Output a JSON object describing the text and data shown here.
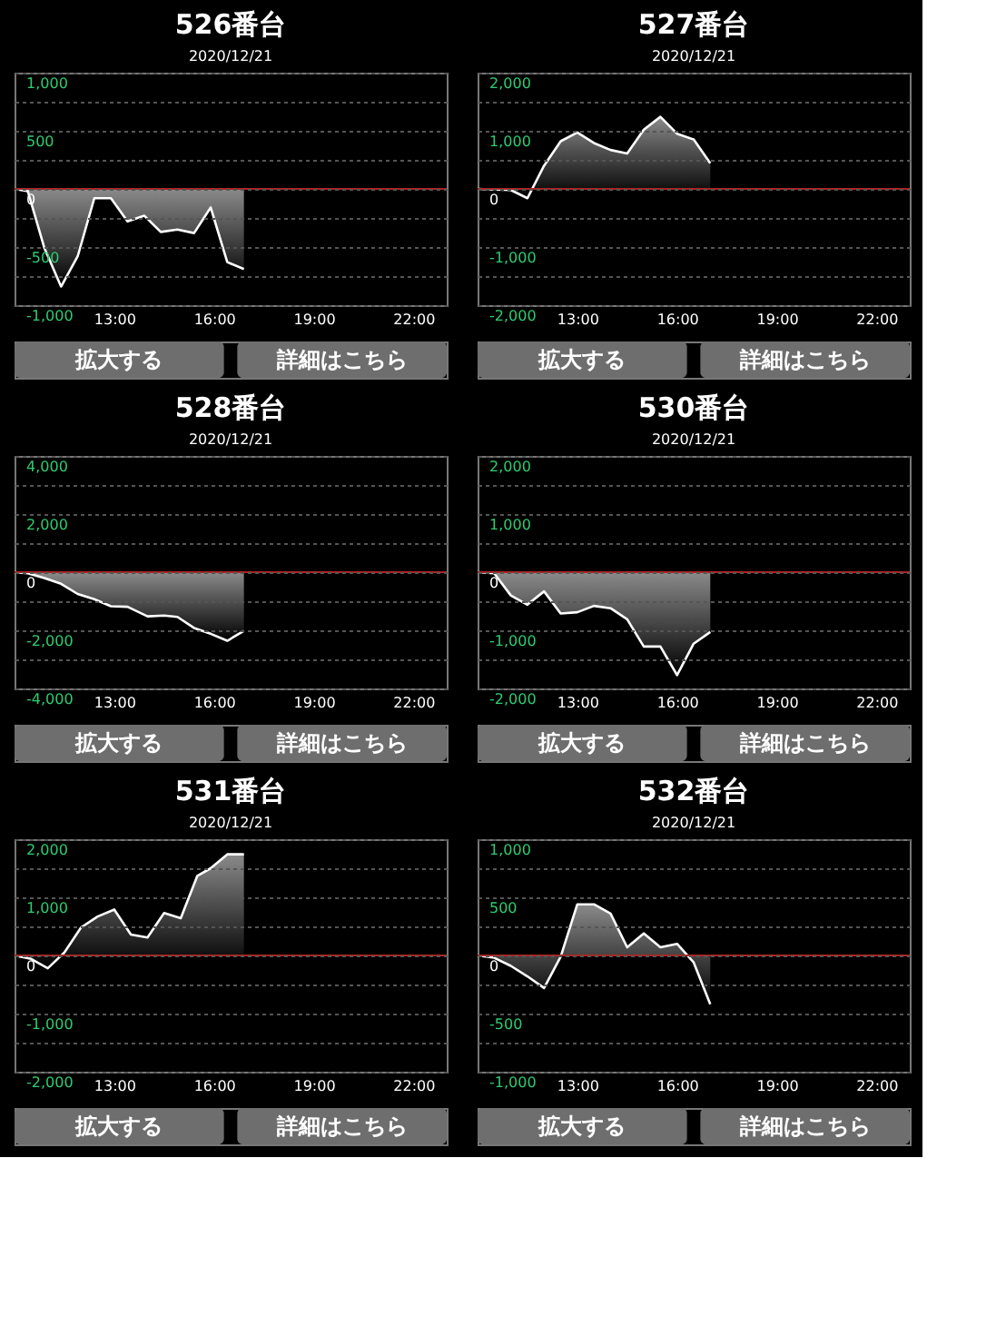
{
  "chart_data": [
    {
      "type": "area",
      "title": "526番台",
      "subtitle": "2020/12/21",
      "x": [
        10.0,
        10.4,
        10.9,
        11.4,
        11.9,
        12.4,
        12.9,
        13.4,
        13.9,
        14.4,
        14.9,
        15.4,
        15.9,
        16.4,
        16.9
      ],
      "series": [
        {
          "color": "#ffffff",
          "values": [
            0,
            -20,
            -510,
            -840,
            -580,
            -80,
            -80,
            -280,
            -230,
            -370,
            -350,
            -380,
            -160,
            -630,
            -690
          ]
        }
      ],
      "xlim": [
        10,
        23
      ],
      "xticks": [
        {
          "value": 13,
          "label": "13:00"
        },
        {
          "value": 16,
          "label": "16:00"
        },
        {
          "value": 19,
          "label": "19:00"
        },
        {
          "value": 22,
          "label": "22:00"
        }
      ],
      "ylim": [
        -1000,
        1000
      ],
      "yticks": [
        {
          "value": -1000,
          "label": "-1,000"
        },
        {
          "value": -750,
          "label": null
        },
        -500,
        {
          "value": -250,
          "label": null
        },
        0,
        {
          "value": 250,
          "label": null
        },
        500,
        {
          "value": 750,
          "label": null
        },
        {
          "value": 1000,
          "label": "1,000"
        }
      ],
      "grid": "y",
      "ref_lines": [
        {
          "axis": "y",
          "value": 0,
          "color": "#b22222"
        }
      ],
      "annotations": [
        "拡大する",
        "詳細はこちら"
      ]
    },
    {
      "type": "area",
      "title": "527番台",
      "subtitle": "2020/12/21",
      "x": [
        10.0,
        11.0,
        11.5,
        12.0,
        12.5,
        13.0,
        13.5,
        14.0,
        14.5,
        15.0,
        15.5,
        16.0,
        16.5,
        17.0
      ],
      "series": [
        {
          "color": "#ffffff",
          "values": [
            0,
            -20,
            -160,
            400,
            820,
            970,
            790,
            670,
            610,
            1020,
            1240,
            950,
            850,
            440
          ]
        }
      ],
      "xlim": [
        10,
        23
      ],
      "xticks": [
        {
          "value": 13,
          "label": "13:00"
        },
        {
          "value": 16,
          "label": "16:00"
        },
        {
          "value": 19,
          "label": "19:00"
        },
        {
          "value": 22,
          "label": "22:00"
        }
      ],
      "ylim": [
        -2000,
        2000
      ],
      "yticks": [
        {
          "value": -2000,
          "label": "-2,000"
        },
        {
          "value": -1500,
          "label": null
        },
        {
          "value": -1000,
          "label": "-1,000"
        },
        {
          "value": -500,
          "label": null
        },
        0,
        {
          "value": 500,
          "label": null
        },
        {
          "value": 1000,
          "label": "1,000"
        },
        {
          "value": 1500,
          "label": null
        },
        {
          "value": 2000,
          "label": "2,000"
        }
      ],
      "grid": "y",
      "ref_lines": [
        {
          "axis": "y",
          "value": 0,
          "color": "#b22222"
        }
      ],
      "annotations": [
        "拡大する",
        "詳細はこちら"
      ]
    },
    {
      "type": "area",
      "title": "528番台",
      "subtitle": "2020/12/21",
      "x": [
        10.0,
        10.4,
        10.9,
        11.4,
        11.9,
        12.4,
        12.9,
        13.4,
        14.0,
        14.5,
        14.9,
        15.4,
        15.9,
        16.4,
        16.9
      ],
      "series": [
        {
          "color": "#ffffff",
          "values": [
            0,
            -40,
            -200,
            -400,
            -750,
            -930,
            -1170,
            -1190,
            -1520,
            -1490,
            -1540,
            -1920,
            -2120,
            -2360,
            -2020
          ]
        }
      ],
      "xlim": [
        10,
        23
      ],
      "xticks": [
        {
          "value": 13,
          "label": "13:00"
        },
        {
          "value": 16,
          "label": "16:00"
        },
        {
          "value": 19,
          "label": "19:00"
        },
        {
          "value": 22,
          "label": "22:00"
        }
      ],
      "ylim": [
        -4000,
        4000
      ],
      "yticks": [
        {
          "value": -4000,
          "label": "-4,000"
        },
        {
          "value": -3000,
          "label": null
        },
        {
          "value": -2000,
          "label": "-2,000"
        },
        {
          "value": -1000,
          "label": null
        },
        0,
        {
          "value": 1000,
          "label": null
        },
        {
          "value": 2000,
          "label": "2,000"
        },
        {
          "value": 3000,
          "label": null
        },
        {
          "value": 4000,
          "label": "4,000"
        }
      ],
      "grid": "y",
      "ref_lines": [
        {
          "axis": "y",
          "value": 0,
          "color": "#b22222"
        }
      ],
      "annotations": [
        "拡大する",
        "詳細はこちら"
      ]
    },
    {
      "type": "area",
      "title": "530番台",
      "subtitle": "2020/12/21",
      "x": [
        10.0,
        10.5,
        11.0,
        11.5,
        12.0,
        12.5,
        13.0,
        13.5,
        14.0,
        14.5,
        15.0,
        15.5,
        16.0,
        16.5,
        17.0
      ],
      "series": [
        {
          "color": "#ffffff",
          "values": [
            0,
            -20,
            -400,
            -560,
            -330,
            -710,
            -690,
            -580,
            -620,
            -810,
            -1280,
            -1280,
            -1770,
            -1230,
            -1030
          ]
        }
      ],
      "xlim": [
        10,
        23
      ],
      "xticks": [
        {
          "value": 13,
          "label": "13:00"
        },
        {
          "value": 16,
          "label": "16:00"
        },
        {
          "value": 19,
          "label": "19:00"
        },
        {
          "value": 22,
          "label": "22:00"
        }
      ],
      "ylim": [
        -2000,
        2000
      ],
      "yticks": [
        {
          "value": -2000,
          "label": "-2,000"
        },
        {
          "value": -1500,
          "label": null
        },
        {
          "value": -1000,
          "label": "-1,000"
        },
        {
          "value": -500,
          "label": null
        },
        0,
        {
          "value": 500,
          "label": null
        },
        {
          "value": 1000,
          "label": "1,000"
        },
        {
          "value": 1500,
          "label": null
        },
        {
          "value": 2000,
          "label": "2,000"
        }
      ],
      "grid": "y",
      "ref_lines": [
        {
          "axis": "y",
          "value": 0,
          "color": "#b22222"
        }
      ],
      "annotations": [
        "拡大する",
        "詳細はこちら"
      ]
    },
    {
      "type": "area",
      "title": "531番台",
      "subtitle": "2020/12/21",
      "x": [
        10.0,
        10.5,
        11.0,
        11.5,
        12.0,
        12.5,
        13.0,
        13.5,
        14.0,
        14.5,
        15.0,
        15.5,
        15.9,
        16.4,
        16.9
      ],
      "series": [
        {
          "color": "#ffffff",
          "values": [
            0,
            -60,
            -220,
            50,
            480,
            670,
            790,
            360,
            310,
            730,
            640,
            1370,
            1500,
            1740,
            1740
          ]
        }
      ],
      "xlim": [
        10,
        23
      ],
      "xticks": [
        {
          "value": 13,
          "label": "13:00"
        },
        {
          "value": 16,
          "label": "16:00"
        },
        {
          "value": 19,
          "label": "19:00"
        },
        {
          "value": 22,
          "label": "22:00"
        }
      ],
      "ylim": [
        -2000,
        2000
      ],
      "yticks": [
        {
          "value": -2000,
          "label": "-2,000"
        },
        {
          "value": -1500,
          "label": null
        },
        {
          "value": -1000,
          "label": "-1,000"
        },
        {
          "value": -500,
          "label": null
        },
        0,
        {
          "value": 500,
          "label": null
        },
        {
          "value": 1000,
          "label": "1,000"
        },
        {
          "value": 1500,
          "label": null
        },
        {
          "value": 2000,
          "label": "2,000"
        }
      ],
      "grid": "y",
      "ref_lines": [
        {
          "axis": "y",
          "value": 0,
          "color": "#b22222"
        }
      ],
      "annotations": [
        "拡大する",
        "詳細はこちら"
      ]
    },
    {
      "type": "area",
      "title": "532番台",
      "subtitle": "2020/12/21",
      "x": [
        10.0,
        10.5,
        11.0,
        11.5,
        12.0,
        12.5,
        13.0,
        13.5,
        14.0,
        14.5,
        15.0,
        15.5,
        16.0,
        16.5,
        17.0
      ],
      "series": [
        {
          "color": "#ffffff",
          "values": [
            0,
            -20,
            -90,
            -180,
            -280,
            -10,
            440,
            440,
            360,
            70,
            190,
            70,
            100,
            -60,
            -420
          ]
        }
      ],
      "xlim": [
        10,
        23
      ],
      "xticks": [
        {
          "value": 13,
          "label": "13:00"
        },
        {
          "value": 16,
          "label": "16:00"
        },
        {
          "value": 19,
          "label": "19:00"
        },
        {
          "value": 22,
          "label": "22:00"
        }
      ],
      "ylim": [
        -1000,
        1000
      ],
      "yticks": [
        {
          "value": -1000,
          "label": "-1,000"
        },
        {
          "value": -750,
          "label": null
        },
        -500,
        {
          "value": -250,
          "label": null
        },
        0,
        {
          "value": 250,
          "label": null
        },
        500,
        {
          "value": 750,
          "label": null
        },
        {
          "value": 1000,
          "label": "1,000"
        }
      ],
      "grid": "y",
      "ref_lines": [
        {
          "axis": "y",
          "value": 0,
          "color": "#b22222"
        }
      ],
      "annotations": [
        "拡大する",
        "詳細はこちら"
      ]
    }
  ]
}
